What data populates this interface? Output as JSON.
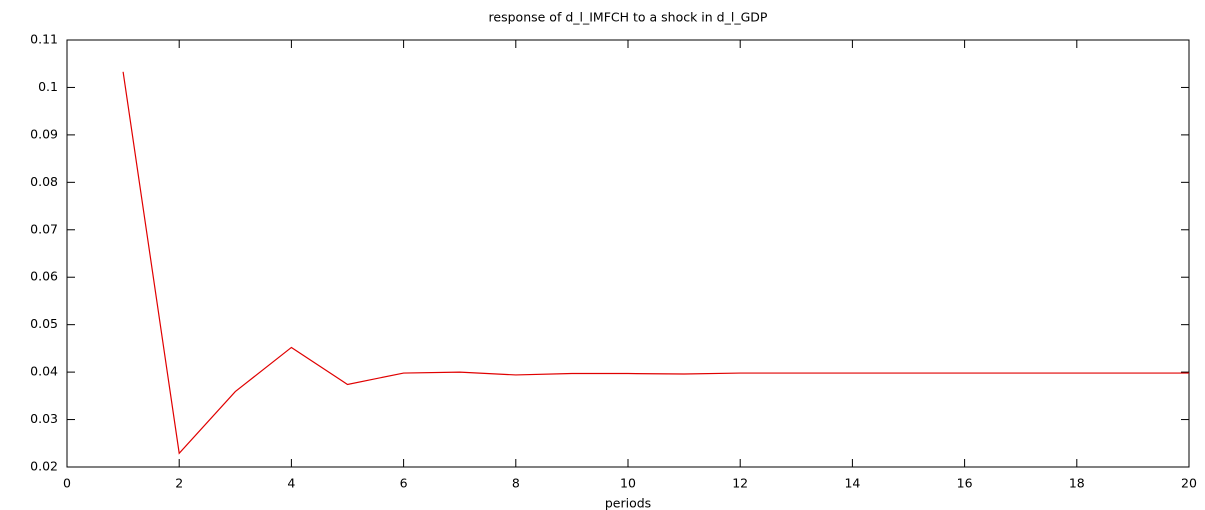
{
  "chart_data": {
    "type": "line",
    "title": "response of d_l_IMFCH to a shock in d_l_GDP",
    "x_label": "periods",
    "x": [
      1,
      2,
      3,
      4,
      5,
      6,
      7,
      8,
      9,
      10,
      11,
      12,
      13,
      14,
      15,
      16,
      17,
      18,
      19,
      20
    ],
    "series": [
      {
        "color": "#e00000",
        "values": [
          0.1033,
          0.0229,
          0.0359,
          0.0452,
          0.0374,
          0.0398,
          0.04,
          0.0394,
          0.0397,
          0.0397,
          0.0396,
          0.0398,
          0.0398,
          0.0398,
          0.0398,
          0.0398,
          0.0398,
          0.0398,
          0.0398,
          0.0398
        ]
      }
    ],
    "xlim": [
      0,
      20
    ],
    "xticks": [
      0,
      2,
      4,
      6,
      8,
      10,
      12,
      14,
      16,
      18,
      20
    ],
    "ylim": [
      0.02,
      0.11
    ],
    "yticks": [
      0.02,
      0.03,
      0.04,
      0.05,
      0.06,
      0.07,
      0.08,
      0.09,
      0.1,
      0.11
    ]
  }
}
